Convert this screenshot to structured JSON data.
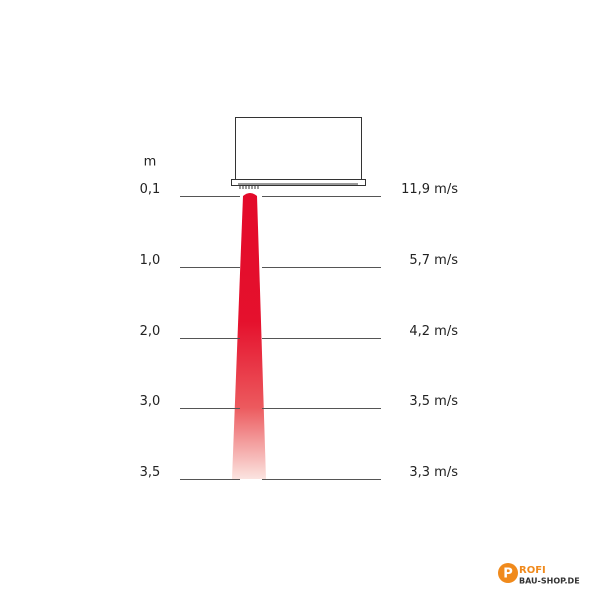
{
  "unit": "m",
  "rows": [
    {
      "distance": "0,1",
      "velocity": "11,9 m/s"
    },
    {
      "distance": "1,0",
      "velocity": "5,7 m/s"
    },
    {
      "distance": "2,0",
      "velocity": "4,2 m/s"
    },
    {
      "distance": "3,0",
      "velocity": "3,5 m/s"
    },
    {
      "distance": "3,5",
      "velocity": "3,3 m/s"
    }
  ],
  "logo": {
    "mark": "P",
    "name": "ROFI",
    "domain": "BAU-SHOP.DE"
  }
}
